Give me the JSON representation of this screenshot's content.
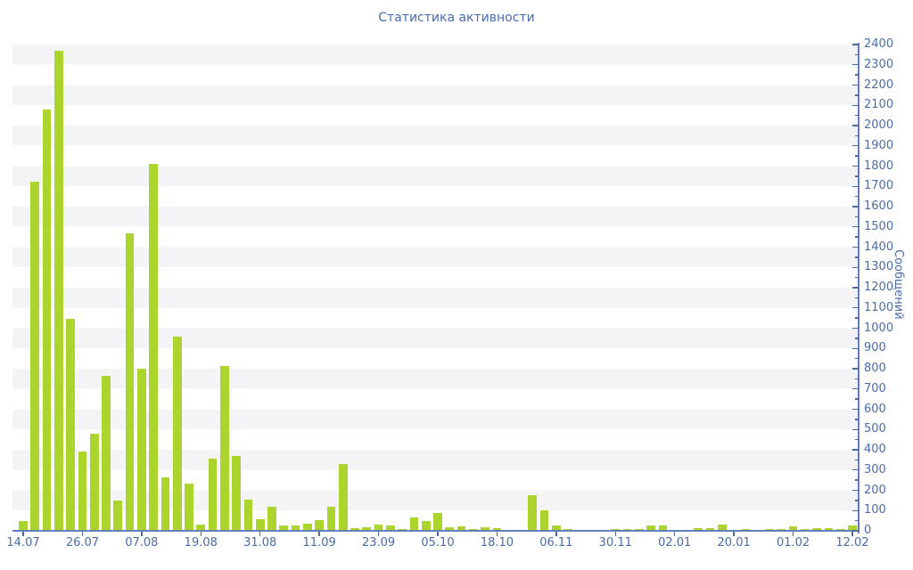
{
  "title": "Статистика активности",
  "chart_data": {
    "type": "bar",
    "title": "Статистика активности",
    "xlabel": "",
    "ylabel": "Сообщений",
    "ylim": [
      0,
      2400
    ],
    "y_major_step": 100,
    "y_minor_step": 50,
    "y_tick_labels": [
      0,
      100,
      200,
      300,
      400,
      500,
      600,
      700,
      800,
      900,
      1000,
      1100,
      1200,
      1300,
      1400,
      1500,
      1600,
      1700,
      1800,
      1900,
      2000,
      2100,
      2200,
      2300,
      2400
    ],
    "x_tick_labels": [
      "14.07",
      "26.07",
      "07.08",
      "19.08",
      "31.08",
      "11.09",
      "23.09",
      "05.10",
      "18.10",
      "06.11",
      "30.11",
      "02.01",
      "20.01",
      "01.02",
      "12.02"
    ],
    "x_tick_every_n_bars": 5,
    "grid": "horizontal-bands",
    "legend_position": "none",
    "values": [
      50,
      1725,
      2080,
      2370,
      1045,
      390,
      480,
      765,
      150,
      1470,
      800,
      1810,
      265,
      960,
      235,
      30,
      355,
      815,
      370,
      155,
      58,
      118,
      26,
      28,
      36,
      55,
      118,
      330,
      15,
      18,
      32,
      28,
      8,
      65,
      50,
      88,
      16,
      24,
      10,
      18,
      12,
      6,
      5,
      175,
      100,
      28,
      8,
      5,
      6,
      6,
      9,
      8,
      11,
      25,
      25,
      5,
      6,
      13,
      14,
      30,
      5,
      9,
      6,
      10,
      7,
      21,
      10,
      14,
      14,
      10,
      28
    ],
    "colors": {
      "bar": "#abd42c",
      "band": "#f4f4f6",
      "axis_line": "#6080bc",
      "tick": "#4a6b9c",
      "text": "#4a6bac",
      "background": "#ffffff"
    }
  }
}
